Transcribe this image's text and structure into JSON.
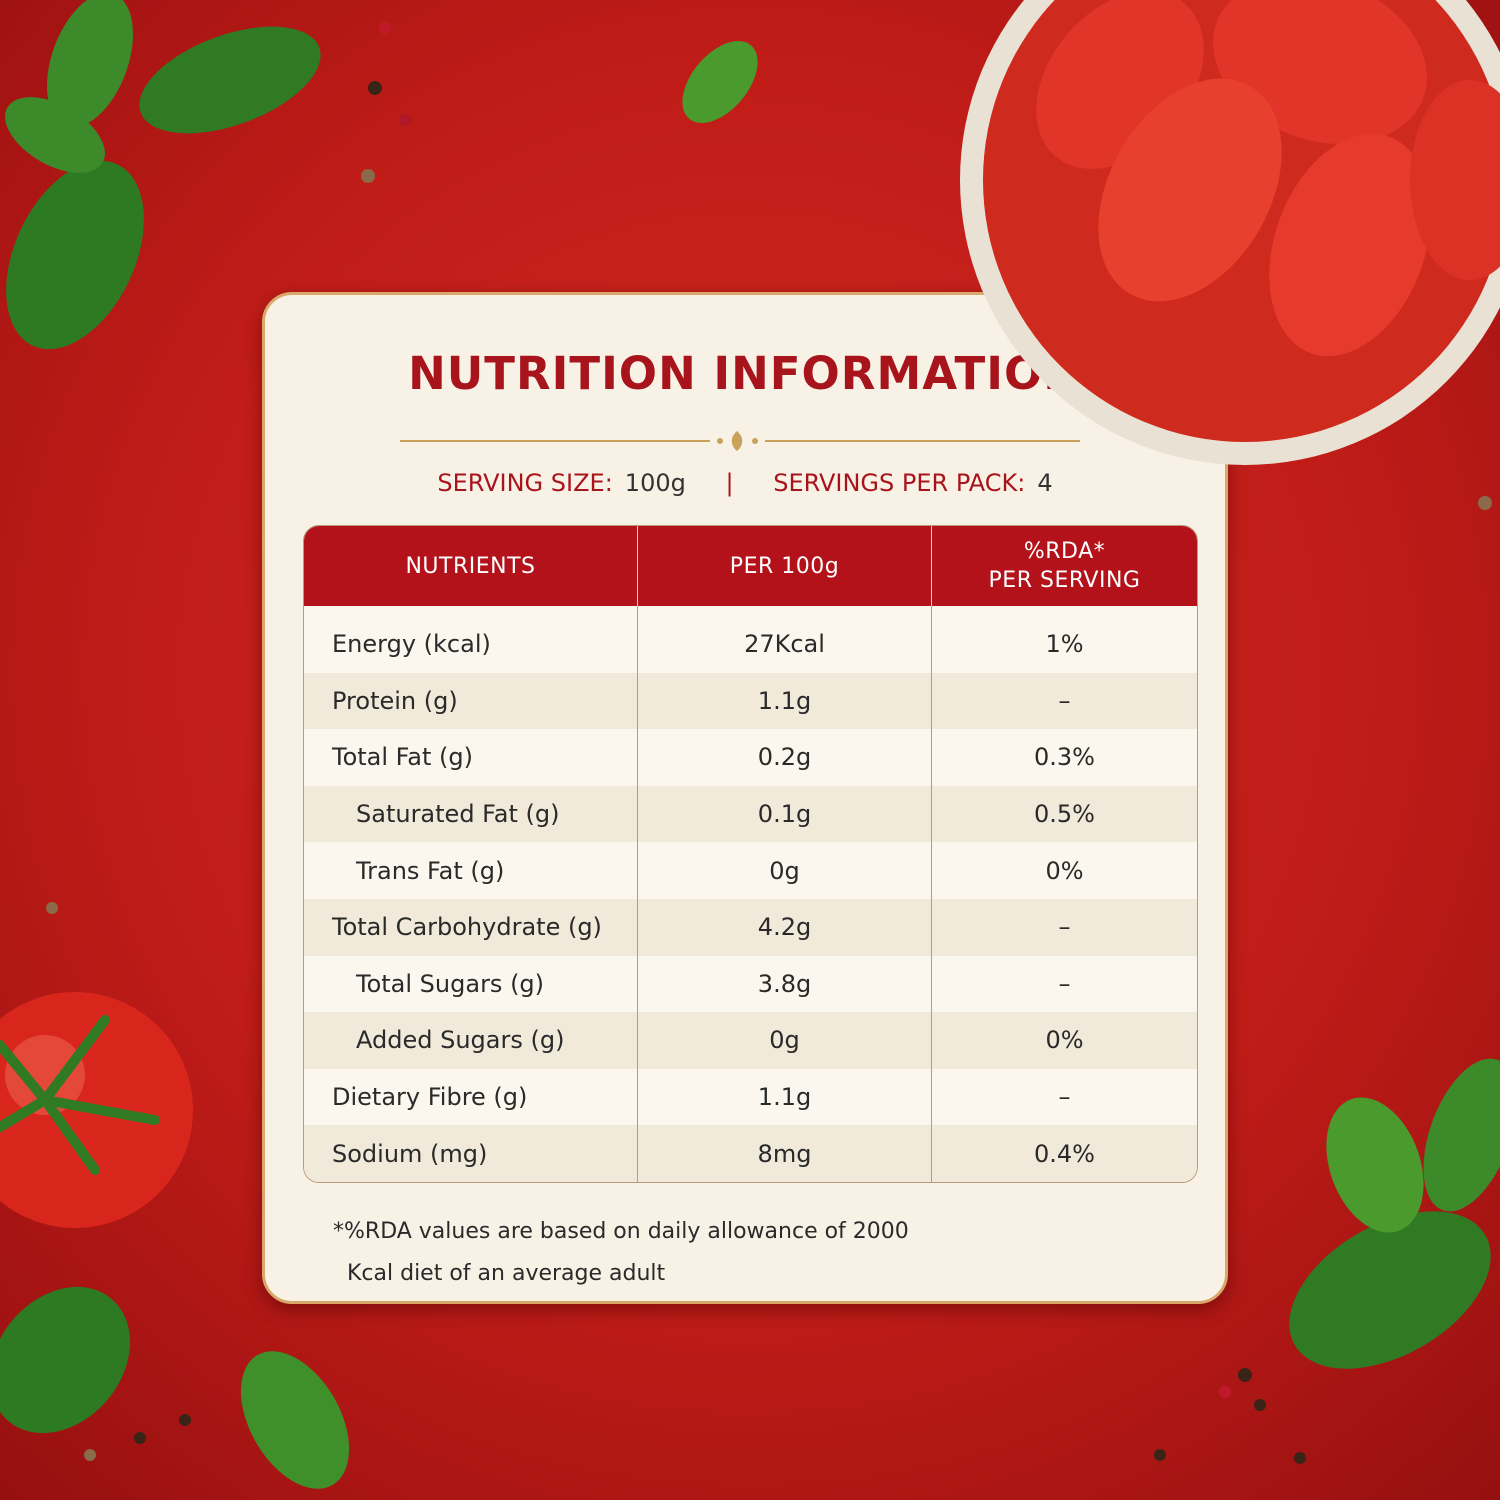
{
  "title": "NUTRITION INFORMATION",
  "serving": {
    "size_label": "SERVING SIZE:",
    "size_value": "100g",
    "separator": "|",
    "pack_label": "SERVINGS PER PACK:",
    "pack_value": "4"
  },
  "table": {
    "headers": [
      [
        "NUTRIENTS"
      ],
      [
        "PER 100g"
      ],
      [
        "%RDA*",
        "PER SERVING"
      ]
    ],
    "rows": [
      [
        "Energy (kcal)",
        "27Kcal",
        "1%"
      ],
      [
        "Protein (g)",
        "1.1g",
        "–"
      ],
      [
        "Total Fat (g)",
        "0.2g",
        "0.3%"
      ],
      [
        "Saturated Fat (g)",
        "0.1g",
        "0.5%"
      ],
      [
        "Trans Fat (g)",
        "0g",
        "0%"
      ],
      [
        "Total Carbohydrate (g)",
        "4.2g",
        "–"
      ],
      [
        "Total Sugars (g)",
        "3.8g",
        "–"
      ],
      [
        "Added Sugars (g)",
        "0g",
        "0%"
      ],
      [
        "Dietary Fibre (g)",
        "1.1g",
        "–"
      ],
      [
        "Sodium (mg)",
        "8mg",
        "0.4%"
      ]
    ]
  },
  "footnote": [
    "*%RDA values are based on daily allowance of 2000",
    "Kcal diet of an average adult"
  ]
}
